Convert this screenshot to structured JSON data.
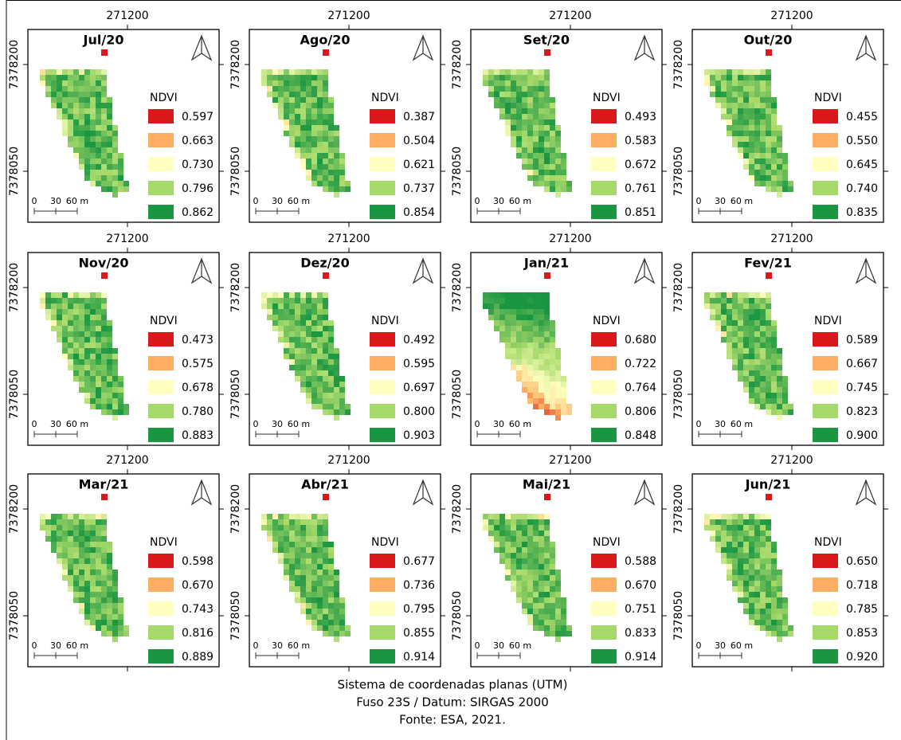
{
  "panels": [
    {
      "title": "Jul/20",
      "x_label": "271200",
      "y_labels": [
        "7378200",
        "7378050"
      ],
      "legend_title": "NDVI",
      "legend": [
        "0.597",
        "0.663",
        "0.730",
        "0.796",
        "0.862"
      ],
      "scale": [
        "0",
        "30",
        "60 m"
      ]
    },
    {
      "title": "Ago/20",
      "x_label": "271200",
      "y_labels": [
        "7378200",
        "7378050"
      ],
      "legend_title": "NDVI",
      "legend": [
        "0.387",
        "0.504",
        "0.621",
        "0.737",
        "0.854"
      ],
      "scale": [
        "0",
        "30",
        "60 m"
      ]
    },
    {
      "title": "Set/20",
      "x_label": "271200",
      "y_labels": [
        "7378200",
        "7378050"
      ],
      "legend_title": "NDVI",
      "legend": [
        "0.493",
        "0.583",
        "0.672",
        "0.761",
        "0.851"
      ],
      "scale": [
        "0",
        "30",
        "60 m"
      ]
    },
    {
      "title": "Out/20",
      "x_label": "271200",
      "y_labels": [
        "7378200",
        "7378050"
      ],
      "legend_title": "NDVI",
      "legend": [
        "0.455",
        "0.550",
        "0.645",
        "0.740",
        "0.835"
      ],
      "scale": [
        "0",
        "30",
        "60 m"
      ]
    },
    {
      "title": "Nov/20",
      "x_label": "271200",
      "y_labels": [
        "7378200",
        "7378050"
      ],
      "legend_title": "NDVI",
      "legend": [
        "0.473",
        "0.575",
        "0.678",
        "0.780",
        "0.883"
      ],
      "scale": [
        "0",
        "30",
        "60 m"
      ]
    },
    {
      "title": "Dez/20",
      "x_label": "271200",
      "y_labels": [
        "7378200",
        "7378050"
      ],
      "legend_title": "NDVI",
      "legend": [
        "0.492",
        "0.595",
        "0.697",
        "0.800",
        "0.903"
      ],
      "scale": [
        "0",
        "30",
        "60 m"
      ]
    },
    {
      "title": "Jan/21",
      "x_label": "271200",
      "y_labels": [
        "7378200",
        "7378050"
      ],
      "legend_title": "NDVI",
      "legend": [
        "0.680",
        "0.722",
        "0.764",
        "0.806",
        "0.848"
      ],
      "scale": [
        "0",
        "30",
        "60 m"
      ]
    },
    {
      "title": "Fev/21",
      "x_label": "271200",
      "y_labels": [
        "7378200",
        "7378050"
      ],
      "legend_title": "NDVI",
      "legend": [
        "0.589",
        "0.667",
        "0.745",
        "0.823",
        "0.900"
      ],
      "scale": [
        "0",
        "30",
        "60 m"
      ]
    },
    {
      "title": "Mar/21",
      "x_label": "271200",
      "y_labels": [
        "7378200",
        "7378050"
      ],
      "legend_title": "NDVI",
      "legend": [
        "0.598",
        "0.670",
        "0.743",
        "0.816",
        "0.889"
      ],
      "scale": [
        "0",
        "30",
        "60 m"
      ]
    },
    {
      "title": "Abr/21",
      "x_label": "271200",
      "y_labels": [
        "7378200",
        "7378050"
      ],
      "legend_title": "NDVI",
      "legend": [
        "0.677",
        "0.736",
        "0.795",
        "0.855",
        "0.914"
      ],
      "scale": [
        "0",
        "30",
        "60 m"
      ]
    },
    {
      "title": "Mai/21",
      "x_label": "271200",
      "y_labels": [
        "7378200",
        "7378050"
      ],
      "legend_title": "NDVI",
      "legend": [
        "0.588",
        "0.670",
        "0.751",
        "0.833",
        "0.914"
      ],
      "scale": [
        "0",
        "30",
        "60 m"
      ]
    },
    {
      "title": "Jun/21",
      "x_label": "271200",
      "y_labels": [
        "7378200",
        "7378050"
      ],
      "legend_title": "NDVI",
      "legend": [
        "0.650",
        "0.718",
        "0.785",
        "0.853",
        "0.920"
      ],
      "scale": [
        "0",
        "30",
        "60 m"
      ]
    }
  ],
  "footer": [
    "Sistema de coordenadas planas (UTM)",
    "Fuso 23S / Datum: SIRGAS 2000",
    "Fonte: ESA, 2021."
  ]
}
